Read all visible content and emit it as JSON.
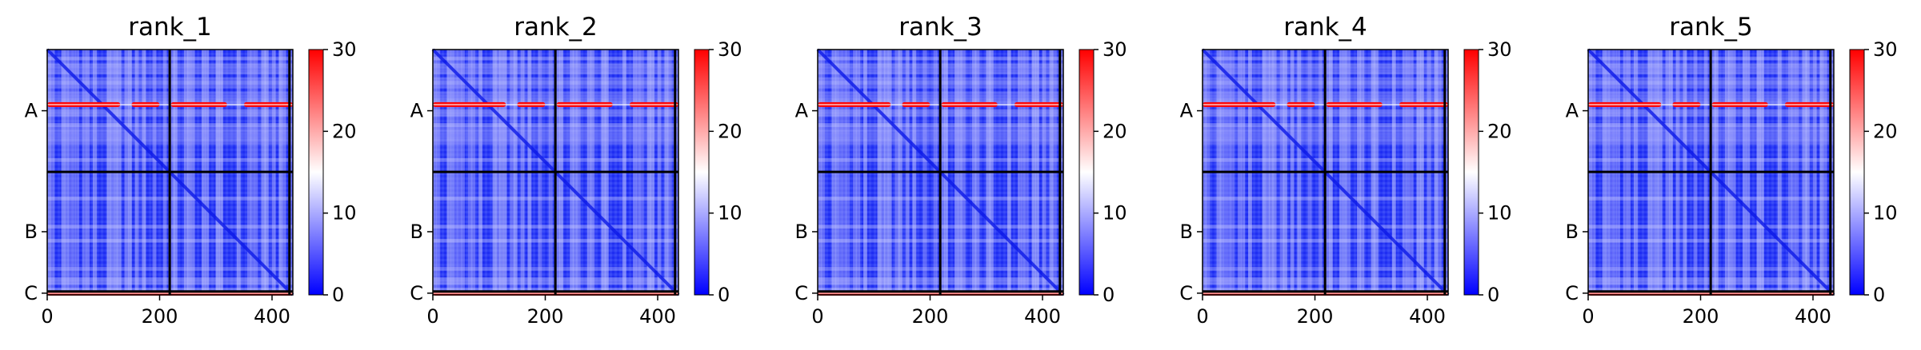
{
  "chart_data": [
    {
      "type": "heatmap",
      "title": "rank_1",
      "x_ticks": [
        0,
        200,
        400
      ],
      "y_tick_labels": [
        "A",
        "B",
        "C"
      ],
      "xlim": [
        0,
        437
      ],
      "chain_boundaries": [
        218,
        431
      ],
      "chain_length_total": 437,
      "colorbar": {
        "range": [
          0,
          30
        ],
        "ticks": [
          0,
          10,
          20,
          30
        ],
        "colors": [
          "#0000ff",
          "#ffffff",
          "#ff0000"
        ]
      },
      "hot_rows": [
        {
          "chain": "A",
          "value": 30,
          "segments": [
            [
              0,
              130
            ],
            [
              150,
              200
            ],
            [
              220,
              320
            ],
            [
              350,
              437
            ]
          ]
        },
        {
          "chain": "C",
          "value": 30,
          "segments": [
            [
              0,
              437
            ]
          ]
        }
      ],
      "background_value": 5
    },
    {
      "type": "heatmap",
      "title": "rank_2",
      "x_ticks": [
        0,
        200,
        400
      ],
      "y_tick_labels": [
        "A",
        "B",
        "C"
      ],
      "xlim": [
        0,
        437
      ],
      "chain_boundaries": [
        218,
        431
      ],
      "chain_length_total": 437,
      "colorbar": {
        "range": [
          0,
          30
        ],
        "ticks": [
          0,
          10,
          20,
          30
        ],
        "colors": [
          "#0000ff",
          "#ffffff",
          "#ff0000"
        ]
      },
      "hot_rows": [
        {
          "chain": "A",
          "value": 30,
          "segments": [
            [
              0,
              130
            ],
            [
              150,
              200
            ],
            [
              220,
              320
            ],
            [
              350,
              437
            ]
          ]
        },
        {
          "chain": "C",
          "value": 30,
          "segments": [
            [
              0,
              437
            ]
          ]
        }
      ],
      "background_value": 5
    },
    {
      "type": "heatmap",
      "title": "rank_3",
      "x_ticks": [
        0,
        200,
        400
      ],
      "y_tick_labels": [
        "A",
        "B",
        "C"
      ],
      "xlim": [
        0,
        437
      ],
      "chain_boundaries": [
        218,
        431
      ],
      "chain_length_total": 437,
      "colorbar": {
        "range": [
          0,
          30
        ],
        "ticks": [
          0,
          10,
          20,
          30
        ],
        "colors": [
          "#0000ff",
          "#ffffff",
          "#ff0000"
        ]
      },
      "hot_rows": [
        {
          "chain": "A",
          "value": 30,
          "segments": [
            [
              0,
              130
            ],
            [
              150,
              200
            ],
            [
              220,
              320
            ],
            [
              350,
              437
            ]
          ]
        },
        {
          "chain": "C",
          "value": 30,
          "segments": [
            [
              0,
              437
            ]
          ]
        }
      ],
      "background_value": 5
    },
    {
      "type": "heatmap",
      "title": "rank_4",
      "x_ticks": [
        0,
        200,
        400
      ],
      "y_tick_labels": [
        "A",
        "B",
        "C"
      ],
      "xlim": [
        0,
        437
      ],
      "chain_boundaries": [
        218,
        431
      ],
      "chain_length_total": 437,
      "colorbar": {
        "range": [
          0,
          30
        ],
        "ticks": [
          0,
          10,
          20,
          30
        ],
        "colors": [
          "#0000ff",
          "#ffffff",
          "#ff0000"
        ]
      },
      "hot_rows": [
        {
          "chain": "A",
          "value": 30,
          "segments": [
            [
              0,
              130
            ],
            [
              150,
              200
            ],
            [
              220,
              320
            ],
            [
              350,
              437
            ]
          ]
        },
        {
          "chain": "C",
          "value": 30,
          "segments": [
            [
              0,
              437
            ]
          ]
        }
      ],
      "background_value": 5
    },
    {
      "type": "heatmap",
      "title": "rank_5",
      "x_ticks": [
        0,
        200,
        400
      ],
      "y_tick_labels": [
        "A",
        "B",
        "C"
      ],
      "xlim": [
        0,
        437
      ],
      "chain_boundaries": [
        218,
        431
      ],
      "chain_length_total": 437,
      "colorbar": {
        "range": [
          0,
          30
        ],
        "ticks": [
          0,
          10,
          20,
          30
        ],
        "colors": [
          "#0000ff",
          "#ffffff",
          "#ff0000"
        ]
      },
      "hot_rows": [
        {
          "chain": "A",
          "value": 30,
          "segments": [
            [
              0,
              130
            ],
            [
              150,
              200
            ],
            [
              220,
              320
            ],
            [
              350,
              437
            ]
          ]
        },
        {
          "chain": "C",
          "value": 30,
          "segments": [
            [
              0,
              437
            ]
          ]
        }
      ],
      "background_value": 5
    }
  ]
}
